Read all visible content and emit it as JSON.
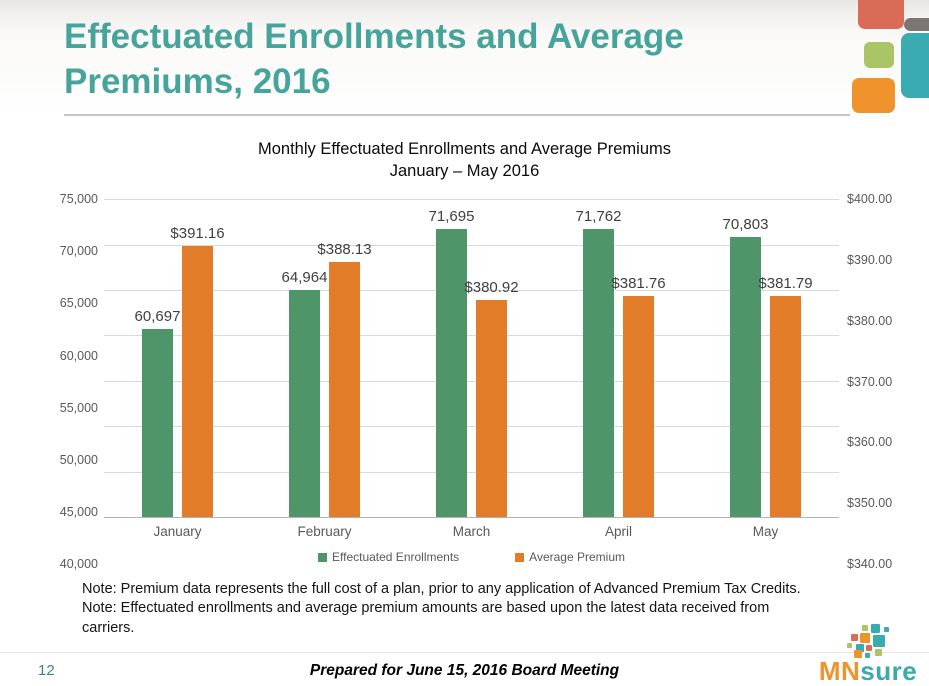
{
  "slide": {
    "title_lines": [
      "Effectuated Enrollments and Average",
      "Premiums, 2016"
    ],
    "page_number": "12",
    "footer_text": "Prepared for June 15, 2016 Board Meeting",
    "notes_lines": [
      "Note: Premium data represents the full cost of a plan, prior to any application of Advanced Premium Tax Credits.",
      "Note: Effectuated enrollments and average premium amounts are based upon the latest data received from",
      "carriers."
    ],
    "logo": {
      "mn": "MN",
      "sure": "sure"
    }
  },
  "chart_data": {
    "type": "bar",
    "title": "Monthly Effectuated Enrollments and Average Premiums",
    "subtitle": "January – May 2016",
    "categories": [
      "January",
      "February",
      "March",
      "April",
      "May"
    ],
    "series": [
      {
        "name": "Effectuated Enrollments",
        "axis": "left",
        "color": "#4e9669",
        "values": [
          60697,
          64964,
          71695,
          71762,
          70803
        ],
        "labels": [
          "60,697",
          "64,964",
          "71,695",
          "71,762",
          "70,803"
        ]
      },
      {
        "name": "Average Premium",
        "axis": "right",
        "color": "#e27c28",
        "values": [
          391.16,
          388.13,
          380.92,
          381.76,
          381.79
        ],
        "labels": [
          "$391.16",
          "$388.13",
          "$380.92",
          "$381.76",
          "$381.79"
        ]
      }
    ],
    "left_axis": {
      "min": 40000,
      "max": 75000,
      "step": 5000,
      "tick_labels": [
        "75,000",
        "70,000",
        "65,000",
        "60,000",
        "55,000",
        "50,000",
        "45,000",
        "40,000"
      ]
    },
    "right_axis": {
      "min": 340,
      "max": 400,
      "step": 10,
      "tick_labels": [
        "$400.00",
        "$390.00",
        "$380.00",
        "$370.00",
        "$360.00",
        "$350.00",
        "$340.00"
      ]
    },
    "grid": true,
    "legend_position": "bottom"
  },
  "theme": {
    "title_color": "#47a49b",
    "page_number_color": "#41808b",
    "decoration_colors": {
      "coral": "#d96c57",
      "gray": "#7c7672",
      "teal": "#3aacb1",
      "green": "#a9c566",
      "orange": "#f0932d"
    },
    "logo_colors": {
      "mn": "#f0932d",
      "sure": "#3baaa8"
    }
  }
}
